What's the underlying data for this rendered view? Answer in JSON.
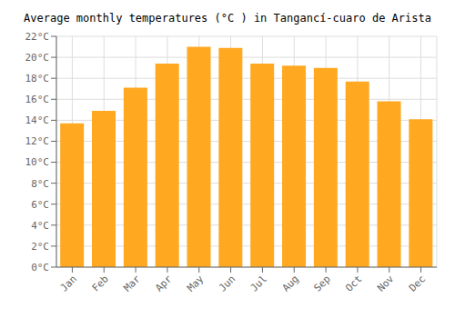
{
  "chart_data": {
    "type": "bar",
    "title": "Average monthly temperatures (°C ) in Tangancí-cuaro de Arista",
    "categories": [
      "Jan",
      "Feb",
      "Mar",
      "Apr",
      "May",
      "Jun",
      "Jul",
      "Aug",
      "Sep",
      "Oct",
      "Nov",
      "Dec"
    ],
    "values": [
      13.7,
      14.9,
      17.1,
      19.4,
      21.0,
      20.9,
      19.4,
      19.2,
      19.0,
      17.7,
      15.8,
      14.1
    ],
    "color": "#FFA820",
    "ylim": [
      0,
      22
    ],
    "yticks": [
      {
        "value": 0,
        "label": "0°C"
      },
      {
        "value": 2,
        "label": "2°C"
      },
      {
        "value": 4,
        "label": "4°C"
      },
      {
        "value": 6,
        "label": "6°C"
      },
      {
        "value": 8,
        "label": "8°C"
      },
      {
        "value": 10,
        "label": "10°C"
      },
      {
        "value": 12,
        "label": "12°C"
      },
      {
        "value": 14,
        "label": "14°C"
      },
      {
        "value": 16,
        "label": "16°C"
      },
      {
        "value": 18,
        "label": "18°C"
      },
      {
        "value": 20,
        "label": "20°C"
      },
      {
        "value": 22,
        "label": "22°C"
      }
    ],
    "grid": true
  }
}
